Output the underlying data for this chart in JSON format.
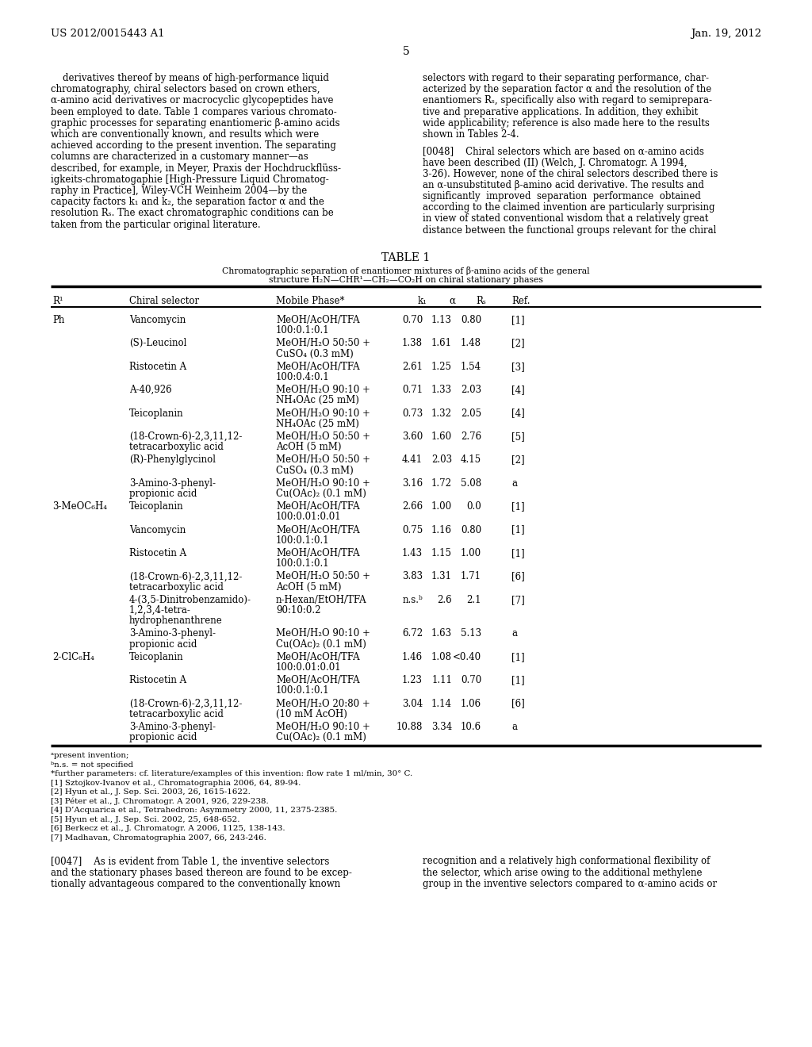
{
  "page_header_left": "US 2012/0015443 A1",
  "page_header_right": "Jan. 19, 2012",
  "page_number": "5",
  "left_col_lines": [
    "    derivatives thereof by means of high-performance liquid",
    "chromatography, chiral selectors based on crown ethers,",
    "α-amino acid derivatives or macrocyclic glycopeptides have",
    "been employed to date. Table 1 compares various chromato-",
    "graphic processes for separating enantiomeric β-amino acids",
    "which are conventionally known, and results which were",
    "achieved according to the present invention. The separating",
    "columns are characterized in a customary manner—as",
    "described, for example, in Meyer, Praxis der Hochdruckflüss-",
    "igkeits-chromatogaphie [High-Pressure Liquid Chromatog-",
    "raphy in Practice], Wiley-VCH Weinheim 2004—by the",
    "capacity factors k₁ and k₂, the separation factor α and the",
    "resolution Rₛ. The exact chromatographic conditions can be",
    "taken from the particular original literature."
  ],
  "right_col_lines": [
    "selectors with regard to their separating performance, char-",
    "acterized by the separation factor α and the resolution of the",
    "enantiomers Rₛ, specifically also with regard to semiprepara-",
    "tive and preparative applications. In addition, they exhibit",
    "wide applicability; reference is also made here to the results",
    "shown in Tables 2-4.",
    "",
    "[0048]    Chiral selectors which are based on α-amino acids",
    "have been described (II) (Welch, J. Chromatogr. A 1994,",
    "3-26). However, none of the chiral selectors described there is",
    "an α-unsubstituted β-amino acid derivative. The results and",
    "significantly  improved  separation  performance  obtained",
    "according to the claimed invention are particularly surprising",
    "in view of stated conventional wisdom that a relatively great",
    "distance between the functional groups relevant for the chiral"
  ],
  "table_title": "TABLE 1",
  "table_sub1": "Chromatographic separation of enantiomer mixtures of β-amino acids of the general",
  "table_sub2": "structure H₂N—CHR¹—CH₂—CO₂H on chiral stationary phases",
  "col_headers": [
    "R¹",
    "Chiral selector",
    "Mobile Phase*",
    "k₁",
    "α",
    "Rₛ",
    "Ref."
  ],
  "table_rows": [
    [
      "Ph",
      [
        "Vancomycin"
      ],
      [
        "MeOH/AcOH/TFA",
        "100:0.1:0.1"
      ],
      "0.70",
      "1.13",
      "0.80",
      "[1]"
    ],
    [
      "",
      [
        "(S)-Leucinol"
      ],
      [
        "MeOH/H₂O 50:50 +",
        "CuSO₄ (0.3 mM)"
      ],
      "1.38",
      "1.61",
      "1.48",
      "[2]"
    ],
    [
      "",
      [
        "Ristocetin A"
      ],
      [
        "MeOH/AcOH/TFA",
        "100:0.4:0.1"
      ],
      "2.61",
      "1.25",
      "1.54",
      "[3]"
    ],
    [
      "",
      [
        "A-40,926"
      ],
      [
        "MeOH/H₂O 90:10 +",
        "NH₄OAc (25 mM)"
      ],
      "0.71",
      "1.33",
      "2.03",
      "[4]"
    ],
    [
      "",
      [
        "Teicoplanin"
      ],
      [
        "MeOH/H₂O 90:10 +",
        "NH₄OAc (25 mM)"
      ],
      "0.73",
      "1.32",
      "2.05",
      "[4]"
    ],
    [
      "",
      [
        "(18-Crown-6)-2,3,11,12-",
        "tetracarboxylic acid"
      ],
      [
        "MeOH/H₂O 50:50 +",
        "AcOH (5 mM)"
      ],
      "3.60",
      "1.60",
      "2.76",
      "[5]"
    ],
    [
      "",
      [
        "(R)-Phenylglycinol"
      ],
      [
        "MeOH/H₂O 50:50 +",
        "CuSO₄ (0.3 mM)"
      ],
      "4.41",
      "2.03",
      "4.15",
      "[2]"
    ],
    [
      "",
      [
        "3-Amino-3-phenyl-",
        "propionic acid"
      ],
      [
        "MeOH/H₂O 90:10 +",
        "Cu(OAc)₂ (0.1 mM)"
      ],
      "3.16",
      "1.72",
      "5.08",
      "a"
    ],
    [
      "3-MeOC₆H₄",
      [
        "Teicoplanin"
      ],
      [
        "MeOH/AcOH/TFA",
        "100:0.01:0.01"
      ],
      "2.66",
      "1.00",
      "0.0",
      "[1]"
    ],
    [
      "",
      [
        "Vancomycin"
      ],
      [
        "MeOH/AcOH/TFA",
        "100:0.1:0.1"
      ],
      "0.75",
      "1.16",
      "0.80",
      "[1]"
    ],
    [
      "",
      [
        "Ristocetin A"
      ],
      [
        "MeOH/AcOH/TFA",
        "100:0.1:0.1"
      ],
      "1.43",
      "1.15",
      "1.00",
      "[1]"
    ],
    [
      "",
      [
        "(18-Crown-6)-2,3,11,12-",
        "tetracarboxylic acid"
      ],
      [
        "MeOH/H₂O 50:50 +",
        "AcOH (5 mM)"
      ],
      "3.83",
      "1.31",
      "1.71",
      "[6]"
    ],
    [
      "",
      [
        "4-(3,5-Dinitrobenzamido)-",
        "1,2,3,4-tetra-",
        "hydrophenanthrene"
      ],
      [
        "n-Hexan/EtOH/TFA",
        "90:10:0.2"
      ],
      "n.s.ᵇ",
      "2.6",
      "2.1",
      "[7]"
    ],
    [
      "",
      [
        "3-Amino-3-phenyl-",
        "propionic acid"
      ],
      [
        "MeOH/H₂O 90:10 +",
        "Cu(OAc)₂ (0.1 mM)"
      ],
      "6.72",
      "1.63",
      "5.13",
      "a"
    ],
    [
      "2-ClC₆H₄",
      [
        "Teicoplanin"
      ],
      [
        "MeOH/AcOH/TFA",
        "100:0.01:0.01"
      ],
      "1.46",
      "1.08",
      "<0.40",
      "[1]"
    ],
    [
      "",
      [
        "Ristocetin A"
      ],
      [
        "MeOH/AcOH/TFA",
        "100:0.1:0.1"
      ],
      "1.23",
      "1.11",
      "0.70",
      "[1]"
    ],
    [
      "",
      [
        "(18-Crown-6)-2,3,11,12-",
        "tetracarboxylic acid"
      ],
      [
        "MeOH/H₂O 20:80 +",
        "(10 mM AcOH)"
      ],
      "3.04",
      "1.14",
      "1.06",
      "[6]"
    ],
    [
      "",
      [
        "3-Amino-3-phenyl-",
        "propionic acid"
      ],
      [
        "MeOH/H₂O 90:10 +",
        "Cu(OAc)₂ (0.1 mM)"
      ],
      "10.88",
      "3.34",
      "10.6",
      "a"
    ]
  ],
  "footnotes": [
    "ᵃpresent invention;",
    "ᵇn.s. = not specified",
    "*further parameters: cf. literature/examples of this invention: flow rate 1 ml/min, 30° C.",
    "[1] Sztojkov-Ivanov et al., Chromatographia 2006, 64, 89-94.",
    "[2] Hyun et al., J. Sep. Sci. 2003, 26, 1615-1622.",
    "[3] Péter et al., J. Chromatogr. A 2001, 926, 229-238.",
    "[4] D’Acquarica et al., Tetrahedron: Asymmetry 2000, 11, 2375-2385.",
    "[5] Hyun et al., J. Sep. Sci. 2002, 25, 648-652.",
    "[6] Berkecz et al., J. Chromatogr. A 2006, 1125, 138-143.",
    "[7] Madhavan, Chromatographia 2007, 66, 243-246."
  ],
  "bot_left_lines": [
    "[0047]    As is evident from Table 1, the inventive selectors",
    "and the stationary phases based thereon are found to be excep-",
    "tionally advantageous compared to the conventionally known"
  ],
  "bot_right_lines": [
    "recognition and a relatively high conformational flexibility of",
    "the selector, which arise owing to the additional methylene",
    "group in the inventive selectors compared to α-amino acids or"
  ]
}
